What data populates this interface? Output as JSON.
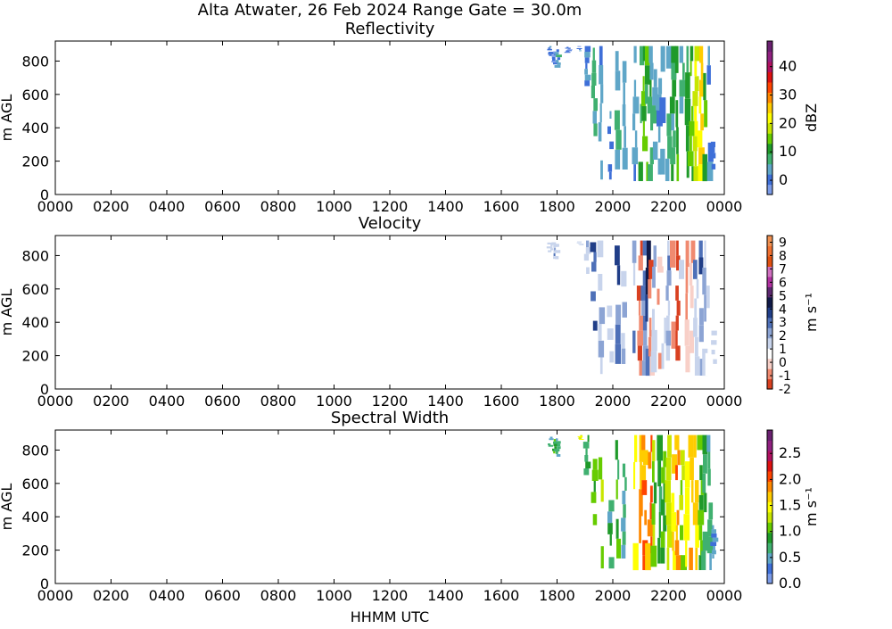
{
  "figure": {
    "title": "Alta Atwater, 26 Feb 2024 Range Gate = 30.0m",
    "xlabel": "HHMM UTC"
  },
  "chart_data": [
    {
      "type": "heatmap",
      "title": "Reflectivity",
      "ylabel": "m AGL",
      "xticks": [
        "0000",
        "0200",
        "0400",
        "0600",
        "0800",
        "1000",
        "1200",
        "1400",
        "1600",
        "1800",
        "2000",
        "2200",
        "0000"
      ],
      "yticks": [
        "0",
        "200",
        "400",
        "600",
        "800"
      ],
      "xlim_hours": [
        0,
        24
      ],
      "ylim": [
        0,
        920
      ],
      "colorbar": {
        "label": "dBZ",
        "range": [
          -5,
          49
        ],
        "ticks": [
          "0",
          "10",
          "20",
          "30",
          "40"
        ],
        "tick_values": [
          0,
          10,
          20,
          30,
          40
        ],
        "colors": [
          "#7b9be8",
          "#3e6fd8",
          "#5fa6c8",
          "#40b070",
          "#1f9a2a",
          "#66cc00",
          "#c8e600",
          "#ffff00",
          "#ffcc00",
          "#ff8800",
          "#ff4400",
          "#dd1111",
          "#b01060",
          "#902080",
          "#6a2070"
        ]
      },
      "data_extent": {
        "time_start": "1745",
        "time_end": "2345",
        "height_range": [
          80,
          900
        ]
      },
      "columns": [
        {
          "t": "1746",
          "bottom": 830,
          "top": 890,
          "value": 2
        },
        {
          "t": "1755",
          "bottom": 780,
          "top": 880,
          "value": 0
        },
        {
          "t": "1802",
          "bottom": 760,
          "top": 870,
          "value": 3
        },
        {
          "t": "1825",
          "bottom": 850,
          "top": 890,
          "value": 1
        },
        {
          "t": "1850",
          "bottom": 860,
          "top": 890,
          "value": 0
        },
        {
          "t": "1905",
          "bottom": 650,
          "top": 890,
          "value": 4
        },
        {
          "t": "1920",
          "bottom": 350,
          "top": 880,
          "value": 6
        },
        {
          "t": "1935",
          "bottom": 90,
          "top": 890,
          "value": 3
        },
        {
          "t": "1955",
          "bottom": 90,
          "top": 500,
          "value": 2
        },
        {
          "t": "2010",
          "bottom": 150,
          "top": 860,
          "value": 5
        },
        {
          "t": "2025",
          "bottom": 150,
          "top": 800,
          "value": 2
        },
        {
          "t": "2048",
          "bottom": 80,
          "top": 890,
          "value": 4
        },
        {
          "t": "2100",
          "bottom": 80,
          "top": 890,
          "value": 9
        },
        {
          "t": "2108",
          "bottom": 80,
          "top": 890,
          "value": 13
        },
        {
          "t": "2115",
          "bottom": 80,
          "top": 890,
          "value": 11
        },
        {
          "t": "2122",
          "bottom": 80,
          "top": 890,
          "value": 8
        },
        {
          "t": "2130",
          "bottom": 100,
          "top": 860,
          "value": 6
        },
        {
          "t": "2140",
          "bottom": 120,
          "top": 890,
          "value": 4
        },
        {
          "t": "2150",
          "bottom": 120,
          "top": 890,
          "value": 3
        },
        {
          "t": "2200",
          "bottom": 80,
          "top": 890,
          "value": 5
        },
        {
          "t": "2210",
          "bottom": 80,
          "top": 890,
          "value": 9
        },
        {
          "t": "2220",
          "bottom": 80,
          "top": 890,
          "value": 12
        },
        {
          "t": "2230",
          "bottom": 80,
          "top": 890,
          "value": 6
        },
        {
          "t": "2240",
          "bottom": 100,
          "top": 890,
          "value": 10
        },
        {
          "t": "2250",
          "bottom": 80,
          "top": 890,
          "value": 14
        },
        {
          "t": "2300",
          "bottom": 80,
          "top": 890,
          "value": 20
        },
        {
          "t": "2310",
          "bottom": 80,
          "top": 890,
          "value": 24
        },
        {
          "t": "2318",
          "bottom": 80,
          "top": 890,
          "value": 11
        },
        {
          "t": "2328",
          "bottom": 80,
          "top": 890,
          "value": 3
        },
        {
          "t": "2338",
          "bottom": 150,
          "top": 350,
          "value": 1
        }
      ]
    },
    {
      "type": "heatmap",
      "title": "Velocity",
      "ylabel": "m s⁻¹",
      "ylabel_left": "m AGL",
      "xticks": [
        "0000",
        "0200",
        "0400",
        "0600",
        "0800",
        "1000",
        "1200",
        "1400",
        "1600",
        "1800",
        "2000",
        "2200",
        "0000"
      ],
      "yticks": [
        "0",
        "200",
        "400",
        "600",
        "800"
      ],
      "xlim_hours": [
        0,
        24
      ],
      "ylim": [
        0,
        920
      ],
      "colorbar": {
        "label": "m s⁻¹",
        "range": [
          -2,
          9.5
        ],
        "ticks": [
          "-2",
          "-1",
          "0",
          "1",
          "2",
          "3",
          "4",
          "5",
          "6",
          "7",
          "8",
          "9"
        ],
        "tick_values": [
          -2,
          -1,
          0,
          1,
          2,
          3,
          4,
          5,
          6,
          7,
          8,
          9
        ],
        "colors": [
          "#d94020",
          "#f08a70",
          "#f8d0c8",
          "#ffffff",
          "#c8d4ec",
          "#8ca4d4",
          "#4e70b8",
          "#203e88",
          "#101a48",
          "#5c2870",
          "#b030a0",
          "#d070c0",
          "#e05010",
          "#f07030",
          "#f09050"
        ]
      },
      "data_extent": {
        "time_start": "1745",
        "time_end": "2345",
        "height_range": [
          80,
          900
        ]
      },
      "columns": [
        {
          "t": "1746",
          "bottom": 820,
          "top": 890,
          "value": 1
        },
        {
          "t": "1755",
          "bottom": 780,
          "top": 880,
          "value": 2
        },
        {
          "t": "1802",
          "bottom": 760,
          "top": 870,
          "value": 1
        },
        {
          "t": "1850",
          "bottom": 860,
          "top": 890,
          "value": 1
        },
        {
          "t": "1905",
          "bottom": 650,
          "top": 890,
          "value": 2
        },
        {
          "t": "1920",
          "bottom": 350,
          "top": 880,
          "value": 3
        },
        {
          "t": "1935",
          "bottom": 90,
          "top": 890,
          "value": 2
        },
        {
          "t": "1955",
          "bottom": 90,
          "top": 500,
          "value": 1
        },
        {
          "t": "2010",
          "bottom": 150,
          "top": 860,
          "value": 3
        },
        {
          "t": "2025",
          "bottom": 150,
          "top": 800,
          "value": 2
        },
        {
          "t": "2048",
          "bottom": 80,
          "top": 890,
          "value": 2
        },
        {
          "t": "2100",
          "bottom": 80,
          "top": 890,
          "value": -1
        },
        {
          "t": "2108",
          "bottom": 80,
          "top": 890,
          "value": 3
        },
        {
          "t": "2115",
          "bottom": 80,
          "top": 890,
          "value": 4
        },
        {
          "t": "2122",
          "bottom": 80,
          "top": 890,
          "value": -1
        },
        {
          "t": "2130",
          "bottom": 100,
          "top": 860,
          "value": 2
        },
        {
          "t": "2140",
          "bottom": 120,
          "top": 890,
          "value": 0
        },
        {
          "t": "2150",
          "bottom": 120,
          "top": 890,
          "value": 1
        },
        {
          "t": "2200",
          "bottom": 80,
          "top": 890,
          "value": 2
        },
        {
          "t": "2210",
          "bottom": 80,
          "top": 890,
          "value": -1
        },
        {
          "t": "2220",
          "bottom": 80,
          "top": 890,
          "value": -2
        },
        {
          "t": "2230",
          "bottom": 80,
          "top": 890,
          "value": 1
        },
        {
          "t": "2240",
          "bottom": 100,
          "top": 890,
          "value": -1
        },
        {
          "t": "2250",
          "bottom": 80,
          "top": 890,
          "value": 0
        },
        {
          "t": "2300",
          "bottom": 80,
          "top": 890,
          "value": 2
        },
        {
          "t": "2310",
          "bottom": 80,
          "top": 890,
          "value": 3
        },
        {
          "t": "2318",
          "bottom": 80,
          "top": 890,
          "value": 2
        },
        {
          "t": "2328",
          "bottom": 80,
          "top": 890,
          "value": 1
        },
        {
          "t": "2338",
          "bottom": 150,
          "top": 350,
          "value": 1
        }
      ]
    },
    {
      "type": "heatmap",
      "title": "Spectral Width",
      "ylabel": "m s⁻¹",
      "ylabel_left": "m AGL",
      "xticks": [
        "0000",
        "0200",
        "0400",
        "0600",
        "0800",
        "1000",
        "1200",
        "1400",
        "1600",
        "1800",
        "2000",
        "2200",
        "0000"
      ],
      "yticks": [
        "0",
        "200",
        "400",
        "600",
        "800"
      ],
      "xlim_hours": [
        0,
        24
      ],
      "ylim": [
        0,
        920
      ],
      "colorbar": {
        "label": "m s⁻¹",
        "range": [
          0,
          2.95
        ],
        "ticks": [
          "0.0",
          "0.5",
          "1.0",
          "1.5",
          "2.0",
          "2.5"
        ],
        "tick_values": [
          0,
          0.5,
          1.0,
          1.5,
          2.0,
          2.5
        ],
        "colors": [
          "#7b9be8",
          "#3e6fd8",
          "#5fa6c8",
          "#40b070",
          "#1f9a2a",
          "#66cc00",
          "#c8e600",
          "#ffff00",
          "#ffcc00",
          "#ff8800",
          "#ff4400",
          "#dd1111",
          "#b01060",
          "#902080",
          "#6a2070"
        ]
      },
      "data_extent": {
        "time_start": "1745",
        "time_end": "2345",
        "height_range": [
          80,
          900
        ]
      },
      "columns": [
        {
          "t": "1746",
          "bottom": 820,
          "top": 890,
          "value": 0.6
        },
        {
          "t": "1755",
          "bottom": 780,
          "top": 880,
          "value": 0.9
        },
        {
          "t": "1802",
          "bottom": 760,
          "top": 870,
          "value": 0.7
        },
        {
          "t": "1850",
          "bottom": 860,
          "top": 890,
          "value": 1.4
        },
        {
          "t": "1905",
          "bottom": 650,
          "top": 890,
          "value": 0.8
        },
        {
          "t": "1920",
          "bottom": 350,
          "top": 880,
          "value": 1.0
        },
        {
          "t": "1935",
          "bottom": 90,
          "top": 890,
          "value": 1.2
        },
        {
          "t": "1955",
          "bottom": 90,
          "top": 500,
          "value": 0.7
        },
        {
          "t": "2010",
          "bottom": 150,
          "top": 860,
          "value": 0.9
        },
        {
          "t": "2025",
          "bottom": 150,
          "top": 800,
          "value": 0.6
        },
        {
          "t": "2048",
          "bottom": 80,
          "top": 890,
          "value": 1.5
        },
        {
          "t": "2100",
          "bottom": 80,
          "top": 890,
          "value": 1.7
        },
        {
          "t": "2108",
          "bottom": 80,
          "top": 890,
          "value": 1.9
        },
        {
          "t": "2115",
          "bottom": 80,
          "top": 890,
          "value": 1.6
        },
        {
          "t": "2122",
          "bottom": 80,
          "top": 890,
          "value": 2.0
        },
        {
          "t": "2130",
          "bottom": 100,
          "top": 860,
          "value": 1.1
        },
        {
          "t": "2140",
          "bottom": 120,
          "top": 890,
          "value": 0.8
        },
        {
          "t": "2150",
          "bottom": 120,
          "top": 890,
          "value": 0.9
        },
        {
          "t": "2200",
          "bottom": 80,
          "top": 890,
          "value": 1.3
        },
        {
          "t": "2210",
          "bottom": 80,
          "top": 890,
          "value": 1.6
        },
        {
          "t": "2220",
          "bottom": 80,
          "top": 890,
          "value": 1.8
        },
        {
          "t": "2230",
          "bottom": 80,
          "top": 890,
          "value": 1.2
        },
        {
          "t": "2240",
          "bottom": 100,
          "top": 890,
          "value": 1.4
        },
        {
          "t": "2250",
          "bottom": 80,
          "top": 890,
          "value": 1.7
        },
        {
          "t": "2300",
          "bottom": 80,
          "top": 890,
          "value": 1.5
        },
        {
          "t": "2310",
          "bottom": 80,
          "top": 890,
          "value": 1.0
        },
        {
          "t": "2318",
          "bottom": 80,
          "top": 890,
          "value": 0.8
        },
        {
          "t": "2328",
          "bottom": 80,
          "top": 890,
          "value": 0.6
        },
        {
          "t": "2338",
          "bottom": 150,
          "top": 350,
          "value": 0.4
        }
      ]
    }
  ]
}
